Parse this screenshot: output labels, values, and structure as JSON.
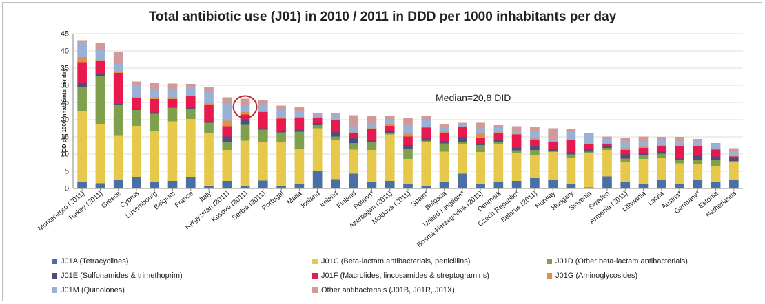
{
  "chart_data": {
    "type": "bar",
    "stacked": true,
    "title": "Total antibiotic use (J01) in 2010 / 2011 in DDD per 1000 inhabitants per day",
    "ylabel": "DDD per 1000 inhabitants per day",
    "xlabel": "",
    "ylim": [
      0,
      45
    ],
    "yticks": [
      0,
      5,
      10,
      15,
      20,
      25,
      30,
      35,
      40,
      45
    ],
    "grid": true,
    "legend_position": "bottom",
    "annotation": "Median=20,8 DID",
    "highlighted_category": "Kosovo (2011)",
    "categories": [
      "Montenegro (2011)",
      "Turkey (2011)",
      "Greece",
      "Cyprus",
      "Luxembourg",
      "Belgium",
      "France",
      "Italy",
      "Kyrgyzstan (2011)",
      "Kosovo (2011)",
      "Serbia (2011)",
      "Portugal",
      "Malta",
      "Iceland",
      "Ireland",
      "Finland",
      "Poland*",
      "Azerbaijan (2011)",
      "Moldova (2011)",
      "Spain*",
      "Bulgaria",
      "United Kingdom*",
      "Bosnia-Herzegovina (2011)",
      "Denmark",
      "Czech Republic*",
      "Belarus (2011)",
      "Norway",
      "Hungary",
      "Slovenia",
      "Sweden",
      "Armenia (2011)",
      "Lithuania",
      "Latvia",
      "Austria*",
      "Germany*",
      "Estonia",
      "Netherlands"
    ],
    "series": [
      {
        "name": "J01A (Tetracyclines)",
        "color": "#4a6fa5",
        "values": [
          2.0,
          1.5,
          2.5,
          3.2,
          2.0,
          2.2,
          3.2,
          0.8,
          2.2,
          0.8,
          2.3,
          0.8,
          1.2,
          5.2,
          2.7,
          4.3,
          2.0,
          2.2,
          1.2,
          0.8,
          2.0,
          4.3,
          1.2,
          2.0,
          2.2,
          3.0,
          2.6,
          1.4,
          0.3,
          3.5,
          2.0,
          1.4,
          2.4,
          1.3,
          2.6,
          2.0,
          2.6
        ]
      },
      {
        "name": "J01C (Beta-lactam antibacterials, penicillins)",
        "color": "#e6c84a",
        "values": [
          20.5,
          17.3,
          12.8,
          15.0,
          14.8,
          17.3,
          17.0,
          15.4,
          9.0,
          13.1,
          11.3,
          12.8,
          10.3,
          12.3,
          11.5,
          7.0,
          9.2,
          13.5,
          7.4,
          12.7,
          8.7,
          8.6,
          9.4,
          11.0,
          8.0,
          6.8,
          8.0,
          7.4,
          10.0,
          7.7,
          5.8,
          7.2,
          6.5,
          6.0,
          4.4,
          4.6,
          5.2
        ]
      },
      {
        "name": "J01D (Other beta-lactam antibacterials)",
        "color": "#7fa04d",
        "values": [
          7.0,
          14.0,
          9.0,
          4.6,
          4.9,
          4.0,
          2.9,
          2.9,
          2.3,
          4.6,
          3.5,
          2.7,
          5.0,
          0.9,
          0.9,
          1.9,
          2.3,
          0.4,
          2.8,
          0.4,
          2.4,
          0.5,
          2.0,
          0.4,
          0.9,
          1.4,
          0.4,
          1.1,
          0.4,
          0.6,
          0.9,
          1.0,
          1.2,
          0.9,
          1.4,
          1.6,
          0.2
        ]
      },
      {
        "name": "J01E (Sulfonamides & trimethoprim)",
        "color": "#4f4c80",
        "values": [
          1.2,
          0.4,
          0.3,
          0.4,
          0.4,
          0.3,
          0.4,
          0.4,
          1.6,
          1.5,
          0.4,
          0.5,
          0.6,
          0.6,
          1.3,
          1.6,
          0.4,
          0.5,
          1.2,
          0.6,
          0.6,
          1.6,
          0.5,
          0.8,
          0.8,
          1.2,
          0.4,
          0.6,
          0.6,
          0.6,
          1.2,
          0.6,
          0.6,
          0.5,
          1.2,
          1.1,
          0.8
        ]
      },
      {
        "name": "J01F (Macrolides, lincosamides & streptogramins)",
        "color": "#e8194f",
        "values": [
          6.0,
          3.8,
          9.0,
          3.2,
          3.9,
          2.2,
          3.4,
          4.9,
          3.0,
          1.5,
          4.7,
          3.5,
          3.4,
          1.6,
          3.5,
          1.4,
          3.3,
          1.6,
          2.5,
          3.2,
          2.5,
          2.8,
          1.7,
          2.0,
          3.8,
          1.6,
          2.2,
          3.5,
          1.6,
          0.6,
          1.3,
          1.6,
          1.6,
          3.6,
          2.6,
          2.0,
          0.5
        ]
      },
      {
        "name": "J01G (Aminoglycosides)",
        "color": "#e0904a",
        "values": [
          1.5,
          0.3,
          0.3,
          0.1,
          0.2,
          0.2,
          0.1,
          0.3,
          1.6,
          0.7,
          0.3,
          0.1,
          0.3,
          0.1,
          0.1,
          0.1,
          0.3,
          0.6,
          0.8,
          0.2,
          0.3,
          0.1,
          1.3,
          0.1,
          0.1,
          0.5,
          0.1,
          0.3,
          0.1,
          0.1,
          0.5,
          0.3,
          0.2,
          0.1,
          0.2,
          0.2,
          0.1
        ]
      },
      {
        "name": "J01M (Quinolones)",
        "color": "#9ab1d6",
        "values": [
          4.3,
          3.0,
          2.5,
          3.5,
          2.5,
          2.8,
          2.6,
          3.7,
          5.0,
          2.0,
          2.0,
          2.5,
          1.8,
          0.8,
          1.5,
          1.8,
          1.4,
          1.2,
          2.4,
          2.0,
          1.5,
          0.6,
          1.4,
          1.4,
          1.0,
          2.0,
          0.6,
          2.1,
          2.8,
          1.4,
          2.0,
          1.5,
          1.6,
          1.4,
          1.5,
          1.3,
          1.4
        ]
      },
      {
        "name": "Other antibacterials (J01B, J01R, J01X)",
        "color": "#d19a9a",
        "values": [
          0.6,
          2.0,
          3.2,
          1.1,
          2.0,
          1.5,
          0.8,
          1.0,
          1.8,
          1.9,
          1.3,
          1.2,
          1.2,
          0.4,
          0.5,
          3.2,
          2.3,
          1.2,
          2.2,
          1.2,
          0.8,
          0.6,
          1.6,
          0.7,
          1.3,
          1.4,
          3.2,
          1.0,
          0.4,
          0.6,
          1.1,
          1.5,
          0.9,
          1.2,
          0.5,
          0.4,
          0.9
        ]
      }
    ]
  }
}
